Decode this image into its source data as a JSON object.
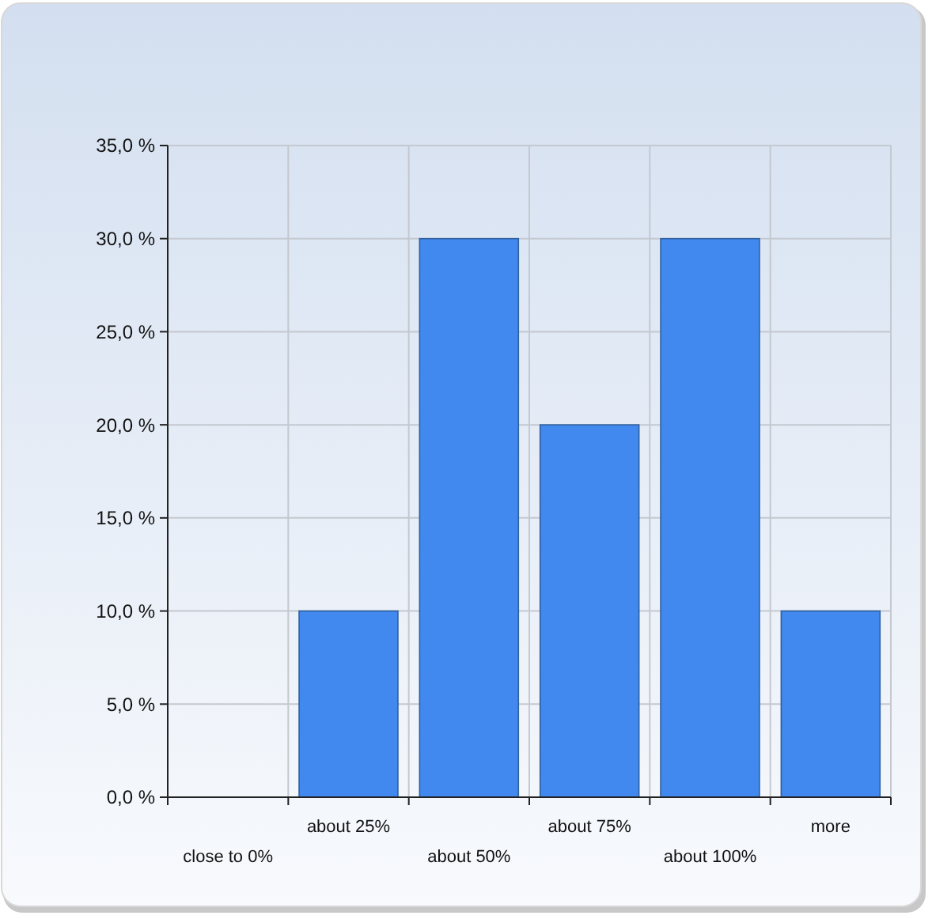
{
  "chart_data": {
    "type": "bar",
    "categories": [
      "close to 0%",
      "about 25%",
      "about 50%",
      "about 75%",
      "about 100%",
      "more"
    ],
    "values": [
      0,
      10,
      30,
      20,
      30,
      10
    ],
    "color": "#4189ee",
    "ylim": [
      0,
      35
    ],
    "yticks": [
      {
        "value": 0,
        "label": "0,0 %"
      },
      {
        "value": 5,
        "label": "5,0 %"
      },
      {
        "value": 10,
        "label": "10,0 %"
      },
      {
        "value": 15,
        "label": "15,0 %"
      },
      {
        "value": 20,
        "label": "20,0 %"
      },
      {
        "value": 25,
        "label": "25,0 %"
      },
      {
        "value": 30,
        "label": "30,0 %"
      },
      {
        "value": 35,
        "label": "35,0 %"
      }
    ],
    "grid": true
  }
}
